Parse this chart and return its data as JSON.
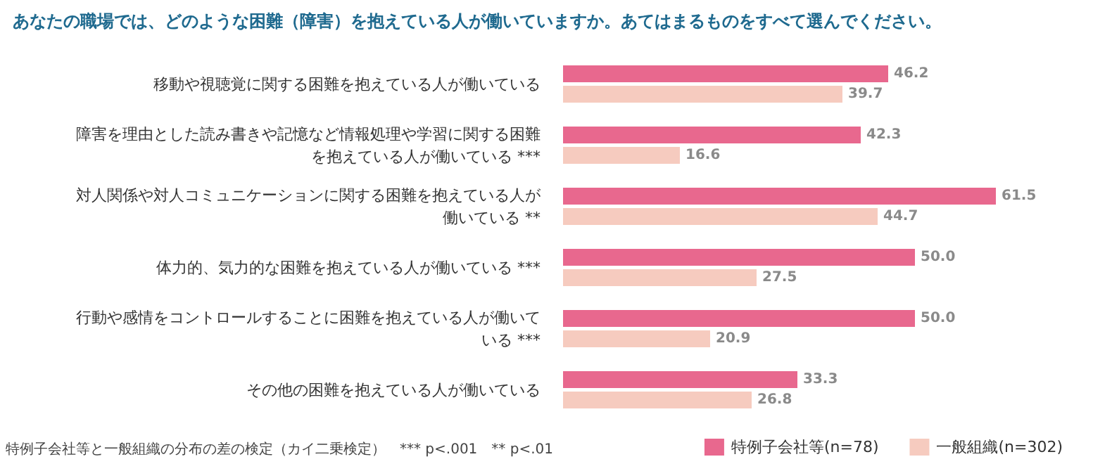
{
  "chart_data": {
    "type": "bar",
    "orientation": "horizontal",
    "title": "あなたの職場では、どのような困難（障害）を抱えている人が働いていますか。あてはまるものをすべて選んでください。",
    "categories": [
      "移動や視聴覚に関する困難を抱えている人が働いている",
      "障害を理由とした読み書きや記憶など情報処理や学習に関する困難を抱えている人が働いている ***",
      "対人関係や対人コミュニケーションに関する困難を抱えている人が働いている **",
      "体力的、気力的な困難を抱えている人が働いている ***",
      "行動や感情をコントロールすることに困難を抱えている人が働いている ***",
      "その他の困難を抱えている人が働いている"
    ],
    "series": [
      {
        "name": "特例子会社等(n=78)",
        "color": "#e8688e",
        "values": [
          46.2,
          42.3,
          61.5,
          50.0,
          50.0,
          33.3
        ],
        "value_labels": [
          "46.2",
          "42.3",
          "61.5",
          "50.0",
          "50.0",
          "33.3"
        ]
      },
      {
        "name": "一般組織(n=302)",
        "color": "#f6cbbf",
        "values": [
          39.7,
          16.6,
          44.7,
          27.5,
          20.9,
          26.8
        ],
        "value_labels": [
          "39.7",
          "16.6",
          "44.7",
          "27.5",
          "20.9",
          "26.8"
        ]
      }
    ],
    "annotations": [
      "特例子会社等と一般組織の分布の差の検定（カイ二乗検定）　*** p<.001　** p<.01"
    ],
    "legend": "bottom right"
  }
}
